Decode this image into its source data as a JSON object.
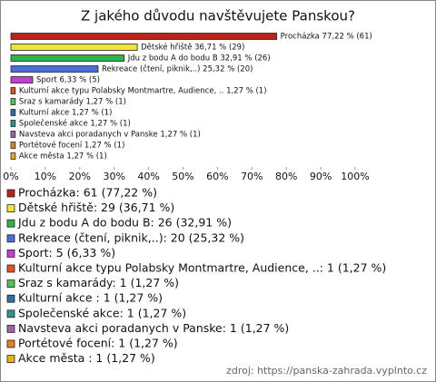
{
  "chart_data": {
    "type": "bar",
    "orientation": "horizontal",
    "title": "Z jakého důvodu navštěvujete Panskou?",
    "values": [
      77.22,
      36.71,
      32.91,
      25.32,
      6.33,
      1.27,
      1.27,
      1.27,
      1.27,
      1.27,
      1.27,
      1.27
    ],
    "value_labels": [
      "Procházka 77,22 % (61)",
      "Dětské hřiště 36,71 % (29)",
      "Jdu z bodu A do bodu B 32,91 % (26)",
      "Rekreace (čtení, piknik,..) 25,32 % (20)",
      "Sport 6,33 % (5)",
      "Kulturní akce typu Polabsky Montmartre, Audience, .. 1,27 % (1)",
      "Sraz s kamarády 1,27 % (1)",
      "Kulturní akce  1,27 % (1)",
      "Společenské akce 1,27 % (1)",
      "Navsteva akci poradanych v Panske 1,27 % (1)",
      "Portétové focení 1,27 % (1)",
      "Akce města  1,27 % (1)"
    ],
    "colors": [
      "#b8231a",
      "#f2e33c",
      "#2fb34a",
      "#4a6fd8",
      "#c03fd2",
      "#e0521f",
      "#55c255",
      "#2f6fa6",
      "#2f9492",
      "#a35fa8",
      "#e2802c",
      "#e6b21f"
    ],
    "legend": [
      "Procházka: 61 (77,22 %)",
      "Dětské hřiště: 29 (36,71 %)",
      "Jdu z bodu A do bodu B: 26 (32,91 %)",
      "Rekreace (čtení, piknik,..): 20 (25,32 %)",
      "Sport: 5 (6,33 %)",
      "Kulturní akce typu Polabsky Montmartre, Audience, ..: 1 (1,27 %)",
      "Sraz s kamarády: 1 (1,27 %)",
      "Kulturní akce : 1 (1,27 %)",
      "Společenské akce: 1 (1,27 %)",
      "Navsteva akci poradanych v Panske: 1 (1,27 %)",
      "Portétové focení: 1 (1,27 %)",
      "Akce města : 1 (1,27 %)"
    ],
    "xlim": [
      0,
      100
    ],
    "xticks": [
      {
        "value": 0,
        "label": "0%"
      },
      {
        "value": 10,
        "label": "10%"
      },
      {
        "value": 20,
        "label": "20%"
      },
      {
        "value": 30,
        "label": "30%"
      },
      {
        "value": 40,
        "label": "40%"
      },
      {
        "value": 50,
        "label": "50%"
      },
      {
        "value": 60,
        "label": "60%"
      },
      {
        "value": 70,
        "label": "70%"
      },
      {
        "value": 80,
        "label": "80%"
      },
      {
        "value": 90,
        "label": "90%"
      },
      {
        "value": 100,
        "label": "100%"
      }
    ],
    "source": "zdroj: https://panska-zahrada.vyplnto.cz"
  }
}
